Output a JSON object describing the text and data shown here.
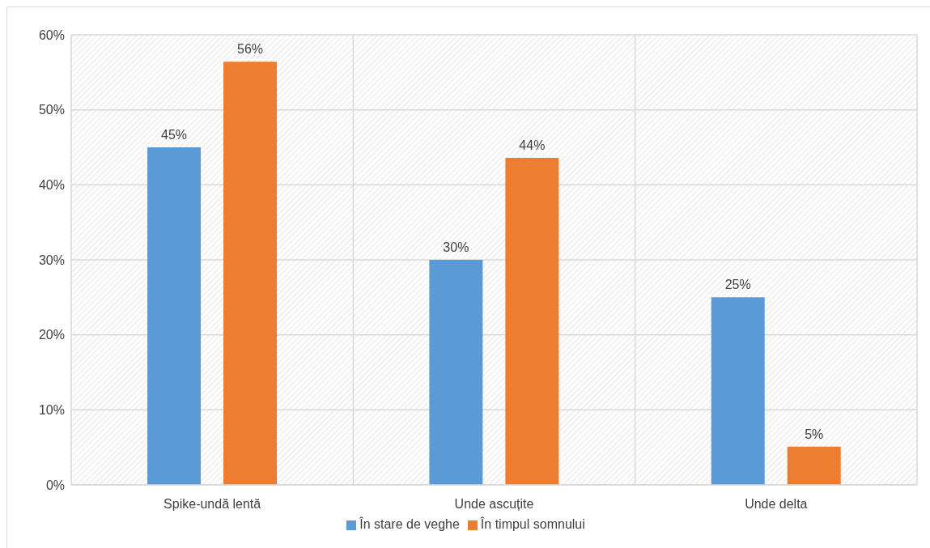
{
  "chart_data": {
    "type": "bar",
    "categories": [
      "Spike-undă lentă",
      "Unde ascuțite",
      "Unde delta"
    ],
    "series": [
      {
        "name": "În stare de veghe",
        "color": "#5b9bd5",
        "values": [
          45,
          30,
          25
        ],
        "value_labels": [
          "45%",
          "30%",
          "25%"
        ]
      },
      {
        "name": "În timpul somnului",
        "color": "#ed7d31",
        "values": [
          56.4,
          43.6,
          5.1
        ],
        "value_labels": [
          "56%",
          "44%",
          "5%"
        ]
      }
    ],
    "ylim": [
      0,
      60
    ],
    "yticks": [
      {
        "value": 0,
        "label": "0%"
      },
      {
        "value": 10,
        "label": "10%"
      },
      {
        "value": 20,
        "label": "20%"
      },
      {
        "value": 30,
        "label": "30%"
      },
      {
        "value": 40,
        "label": "40%"
      },
      {
        "value": 50,
        "label": "50%"
      },
      {
        "value": 60,
        "label": "60%"
      }
    ],
    "grid": true,
    "legend": "bottom"
  }
}
